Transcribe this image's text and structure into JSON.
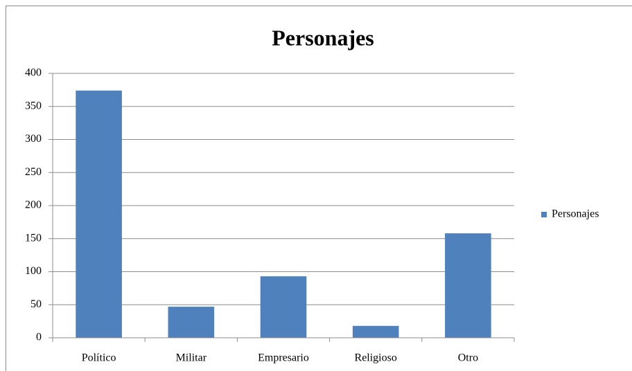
{
  "chart_data": {
    "type": "bar",
    "title": "Personajes",
    "categories": [
      "Político",
      "Militar",
      "Empresario",
      "Religioso",
      "Otro"
    ],
    "series": [
      {
        "name": "Personajes",
        "color": "#4f81bd",
        "values": [
          374,
          47,
          93,
          18,
          158
        ]
      }
    ],
    "ylim": [
      0,
      400
    ],
    "yticks": [
      0,
      50,
      100,
      150,
      200,
      250,
      300,
      350,
      400
    ],
    "grid": true,
    "legend": "right"
  }
}
